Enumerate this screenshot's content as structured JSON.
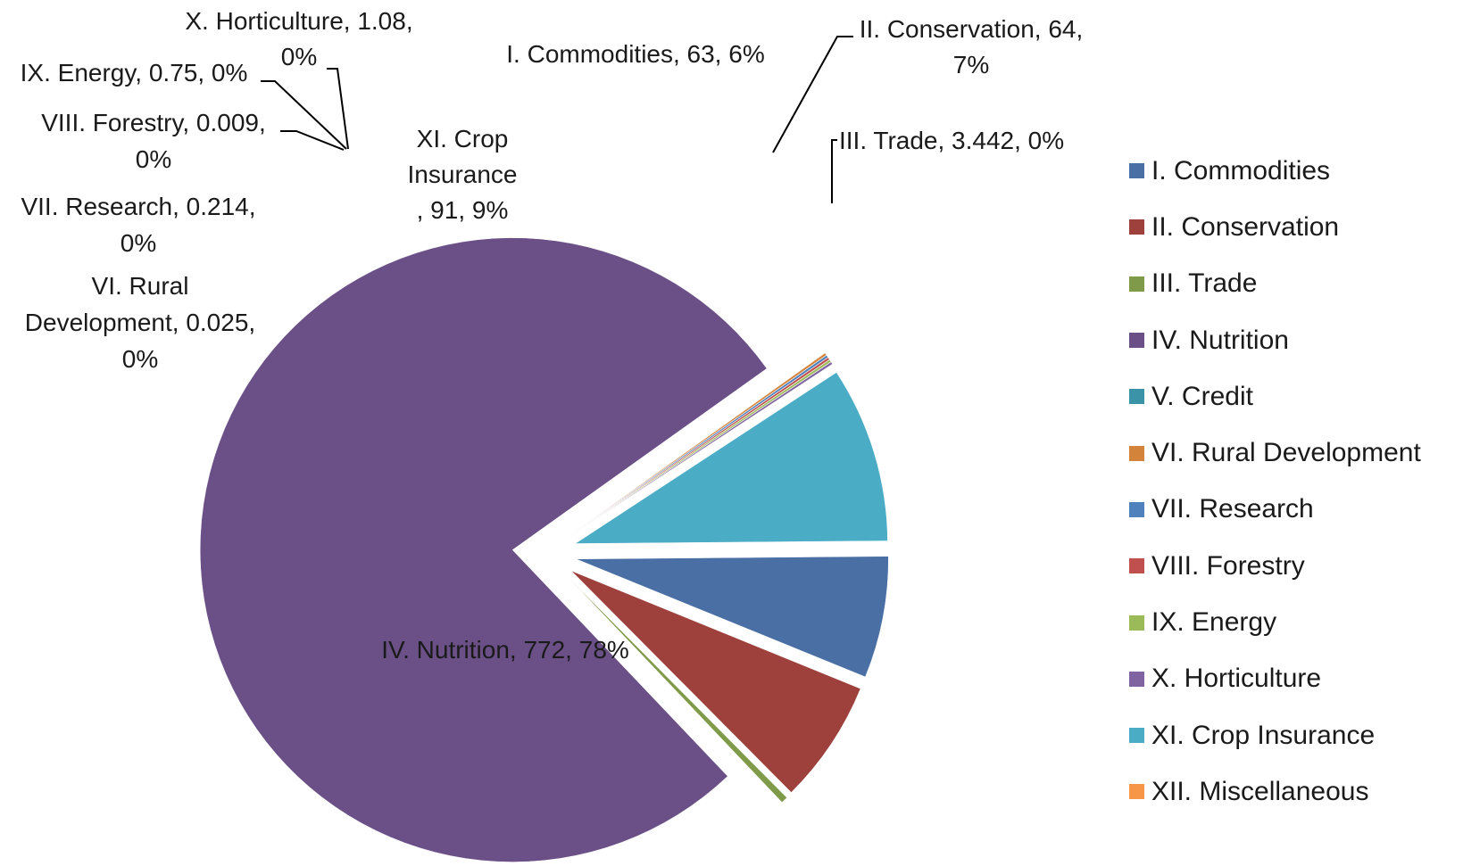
{
  "chart_data": {
    "type": "pie",
    "title": "",
    "exploded": true,
    "legend_position": "right",
    "label_format": "category, value, percent",
    "slices": [
      {
        "name": "I. Commodities",
        "value": 63,
        "percent": "6%",
        "color": "#4a6fa5",
        "label_lines": [
          "I. Commodities, 63, 6%"
        ]
      },
      {
        "name": "II. Conservation",
        "value": 64,
        "percent": "7%",
        "color": "#9e413c",
        "label_lines": [
          "II. Conservation, 64,",
          "7%"
        ]
      },
      {
        "name": "III. Trade",
        "value": 3.442,
        "percent": "0%",
        "color": "#7f9a48",
        "label_lines": [
          "III. Trade, 3.442, 0%"
        ]
      },
      {
        "name": "IV. Nutrition",
        "value": 772,
        "percent": "78%",
        "color": "#6a5087",
        "label_lines": [
          "IV. Nutrition, 772, 78%"
        ]
      },
      {
        "name": "V. Credit",
        "value": 0,
        "color": "#3b93a8",
        "label_lines": []
      },
      {
        "name": "VI. Rural Development",
        "value": 0.025,
        "percent": "0%",
        "color": "#d4843a",
        "label_lines": [
          "VI. Rural",
          "Development, 0.025,",
          "0%"
        ]
      },
      {
        "name": "VII. Research",
        "value": 0.214,
        "percent": "0%",
        "color": "#4f81bd",
        "label_lines": [
          "VII. Research, 0.214,",
          "0%"
        ]
      },
      {
        "name": "VIII. Forestry",
        "value": 0.009,
        "percent": "0%",
        "color": "#c0504d",
        "label_lines": [
          "VIII. Forestry, 0.009,",
          "0%"
        ]
      },
      {
        "name": "IX. Energy",
        "value": 0.75,
        "percent": "0%",
        "color": "#9bbb59",
        "label_lines": [
          "IX. Energy, 0.75, 0%"
        ]
      },
      {
        "name": "X. Horticulture",
        "value": 1.08,
        "percent": "0%",
        "color": "#8064a2",
        "label_lines": [
          "X. Horticulture, 1.08,",
          "0%"
        ]
      },
      {
        "name": "XI. Crop Insurance",
        "value": 91,
        "percent": "9%",
        "color": "#4bacc6",
        "label_lines": [
          "XI. Crop",
          "Insurance",
          ", 91, 9%"
        ]
      },
      {
        "name": "XII. Miscellaneous",
        "value": 0,
        "color": "#f79646",
        "label_lines": []
      }
    ]
  }
}
